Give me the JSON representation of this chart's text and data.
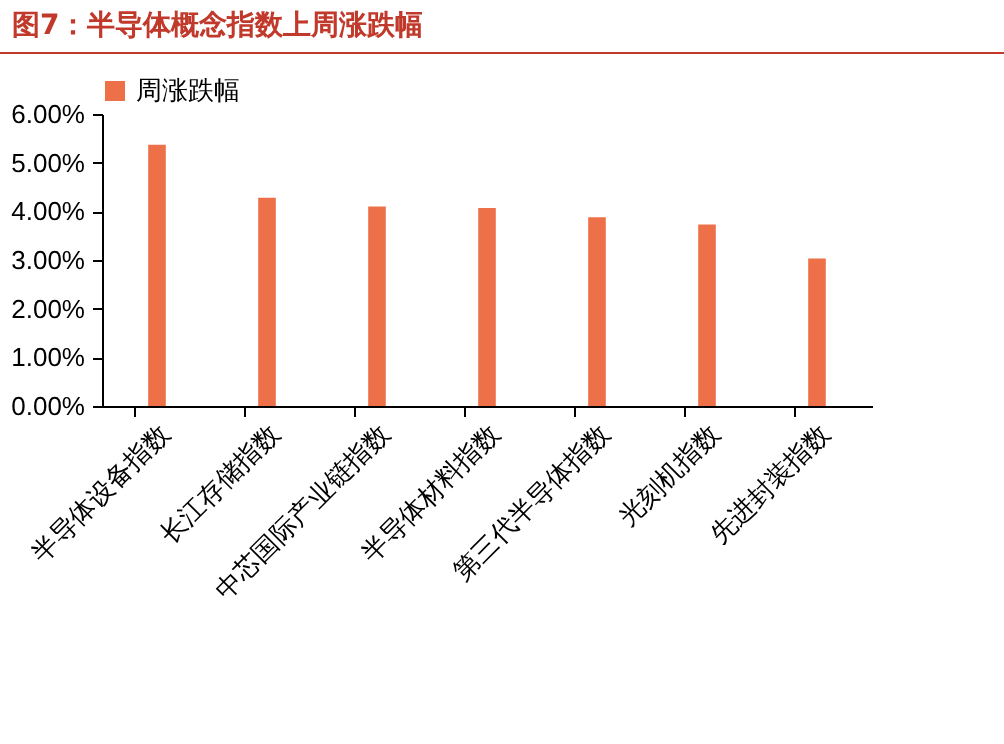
{
  "chart_data": {
    "type": "bar",
    "title": "图7：半导体概念指数上周涨跌幅",
    "categories": [
      "半导体设备指数",
      "长江存储指数",
      "中芯国际产业链指数",
      "半导体材料指数",
      "第三代半导体指数",
      "光刻机指数",
      "先进封装指数"
    ],
    "series": [
      {
        "name": "周涨跌幅",
        "color": "#ed7049",
        "values": [
          5.37,
          4.28,
          4.1,
          4.07,
          3.88,
          3.73,
          3.03
        ]
      }
    ],
    "ylim": [
      0,
      6
    ],
    "yticks": [
      {
        "value": 0,
        "label": "0.00%"
      },
      {
        "value": 1,
        "label": "1.00%"
      },
      {
        "value": 2,
        "label": "2.00%"
      },
      {
        "value": 3,
        "label": "3.00%"
      },
      {
        "value": 4,
        "label": "4.00%"
      },
      {
        "value": 5,
        "label": "5.00%"
      },
      {
        "value": 6,
        "label": "6.00%"
      }
    ],
    "grid": false,
    "legend": "top"
  }
}
